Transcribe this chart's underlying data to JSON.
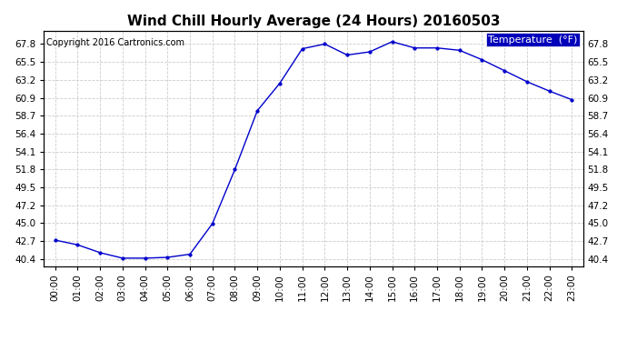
{
  "title": "Wind Chill Hourly Average (24 Hours) 20160503",
  "copyright": "Copyright 2016 Cartronics.com",
  "legend_label": "Temperature  (°F)",
  "hours": [
    0,
    1,
    2,
    3,
    4,
    5,
    6,
    7,
    8,
    9,
    10,
    11,
    12,
    13,
    14,
    15,
    16,
    17,
    18,
    19,
    20,
    21,
    22,
    23
  ],
  "temps": [
    42.8,
    42.2,
    41.2,
    40.5,
    40.5,
    40.6,
    41.0,
    44.9,
    51.8,
    59.3,
    62.8,
    67.2,
    67.8,
    66.4,
    66.8,
    68.1,
    67.3,
    67.3,
    67.0,
    65.8,
    64.4,
    63.0,
    61.8,
    60.7
  ],
  "line_color": "#0000cc",
  "marker_color": "#0000cc",
  "background_color": "#ffffff",
  "grid_color": "#cccccc",
  "ylim": [
    39.5,
    69.5
  ],
  "yticks": [
    40.4,
    42.7,
    45.0,
    47.2,
    49.5,
    51.8,
    54.1,
    56.4,
    58.7,
    60.9,
    63.2,
    65.5,
    67.8
  ],
  "title_fontsize": 11,
  "axis_fontsize": 7.5,
  "copyright_fontsize": 7,
  "legend_bg": "#0000bb",
  "legend_text_color": "#ffffff",
  "legend_fontsize": 8
}
